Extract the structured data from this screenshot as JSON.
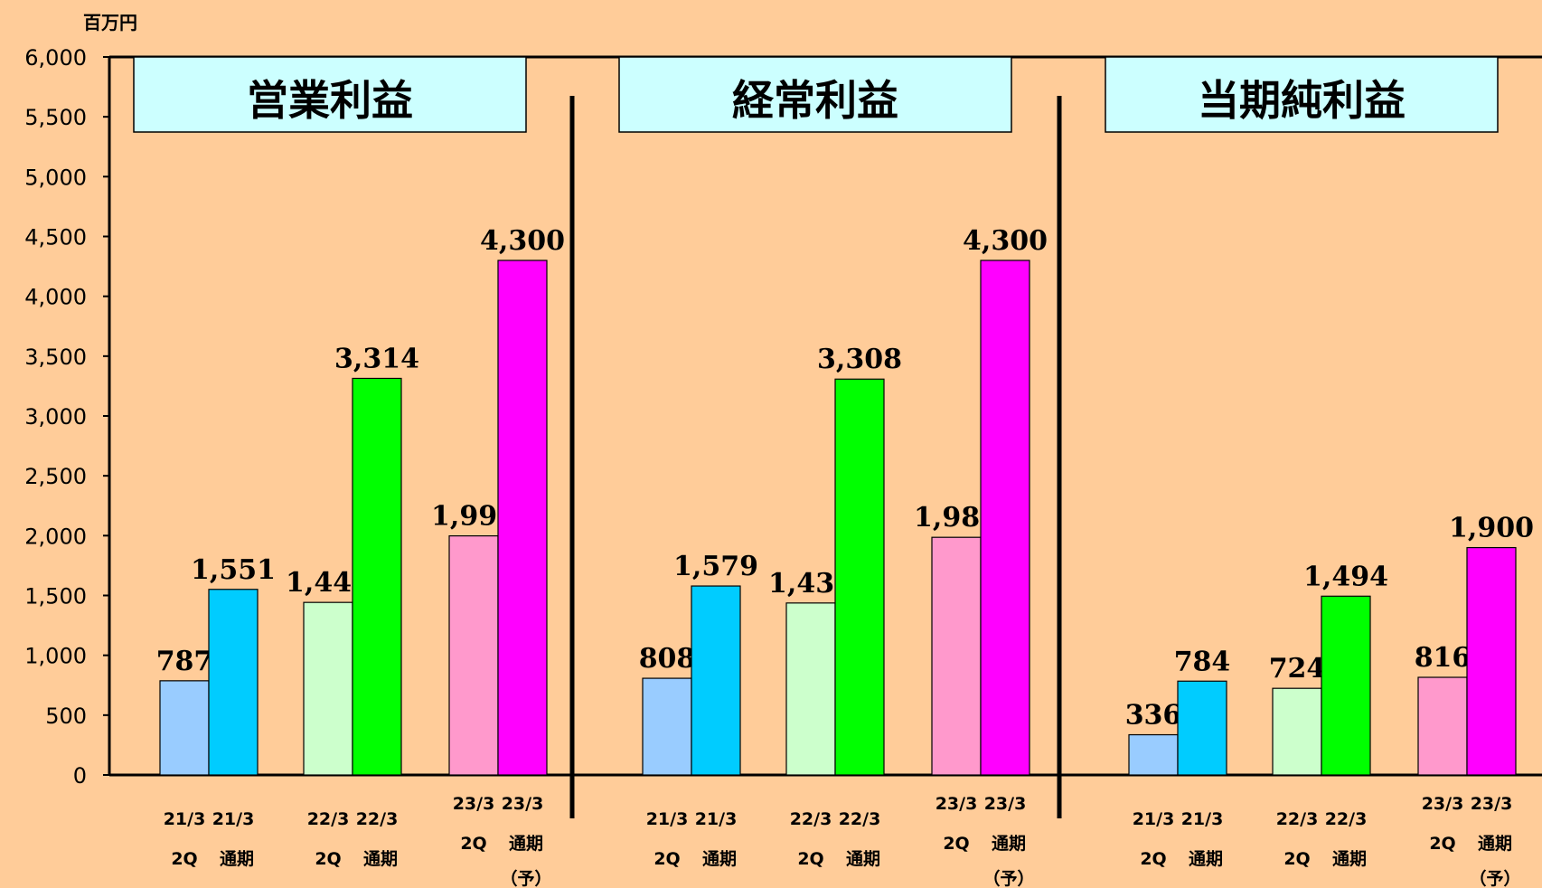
{
  "chart_data": {
    "type": "bar",
    "unit": "百万円",
    "ylim": [
      0,
      6000
    ],
    "y_ticks": [
      "6,000",
      "5,500",
      "5,000",
      "4,500",
      "4,000",
      "3,500",
      "3,000",
      "2,500",
      "2,000",
      "1,500",
      "1,000",
      "500",
      "0"
    ],
    "colors": {
      "background": "#ffcc99",
      "title_box": "#ccffff",
      "21_2q": "#99ccff",
      "21_full": "#00ccff",
      "22_2q": "#ccffcc",
      "22_full": "#00ff00",
      "23_2q": "#ff99cc",
      "23_full": "#ff00ff"
    },
    "groups": [
      {
        "top": "21/3",
        "left_bottom": "2Q",
        "right_top": "21/3",
        "right_bottom": "通期",
        "note": ""
      },
      {
        "top": "22/3",
        "left_bottom": "2Q",
        "right_top": "22/3",
        "right_bottom": "通期",
        "note": ""
      },
      {
        "top": "23/3",
        "left_bottom": "2Q",
        "right_top": "23/3",
        "right_bottom": "通期",
        "note": "（予）"
      }
    ],
    "panels": [
      {
        "title": "営業利益",
        "values": [
          787,
          1551,
          1442,
          3314,
          1998,
          4300
        ],
        "labels": [
          "787",
          "1,551",
          "1,442",
          "3,314",
          "1,998",
          "4,300"
        ]
      },
      {
        "title": "経常利益",
        "values": [
          808,
          1579,
          1437,
          3308,
          1986,
          4300
        ],
        "labels": [
          "808",
          "1,579",
          "1,437",
          "3,308",
          "1,986",
          "4,300"
        ]
      },
      {
        "title": "当期純利益",
        "values": [
          336,
          784,
          724,
          1494,
          816,
          1900
        ],
        "labels": [
          "336",
          "784",
          "724",
          "1,494",
          "816",
          "1,900"
        ]
      }
    ]
  }
}
